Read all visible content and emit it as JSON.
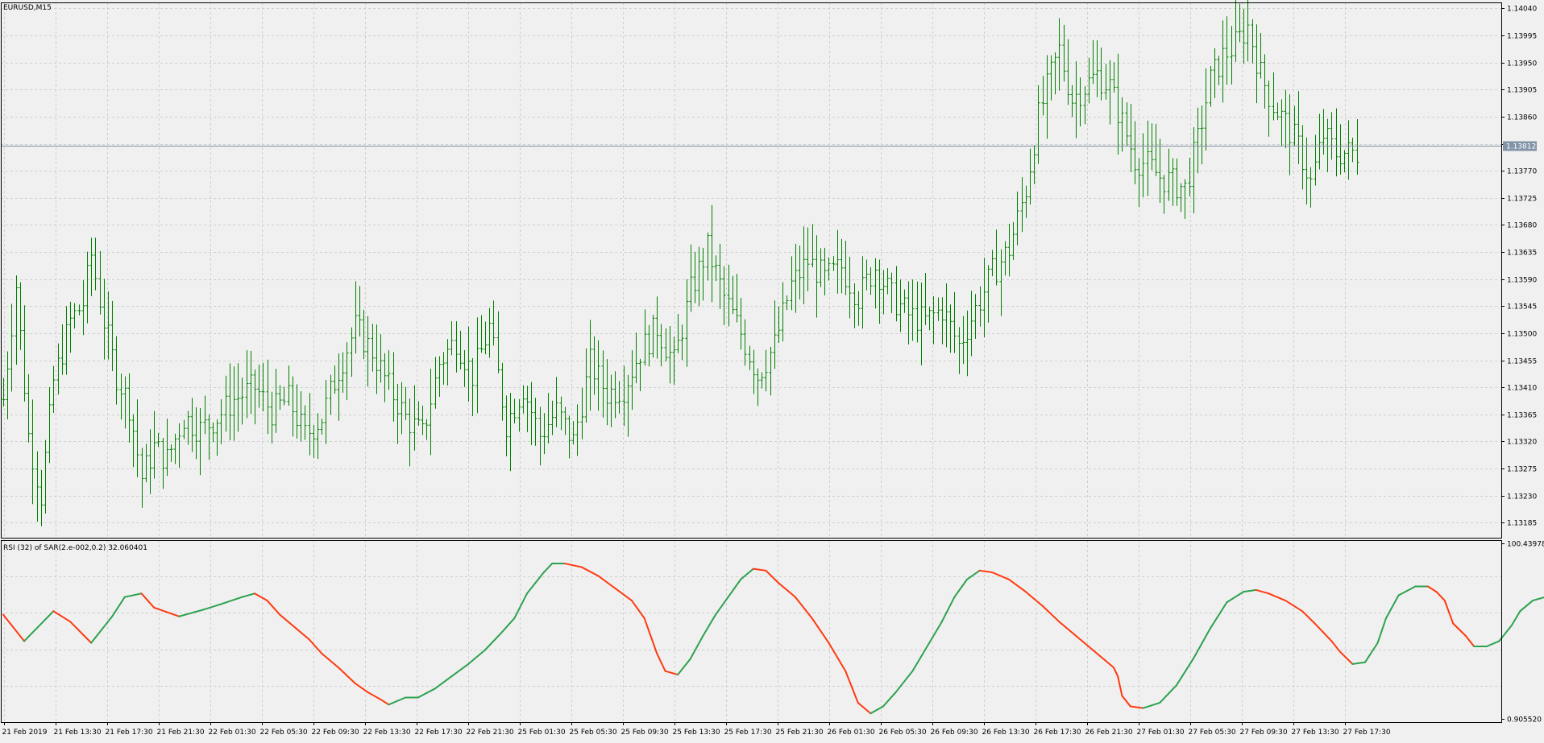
{
  "main_label": "EURUSD,M15",
  "indicator_label": "RSI (32) of SAR(2.e-002,0.2) 32.060401",
  "current_price_label": "1.13812",
  "colors": {
    "background": "#f0f0f0",
    "grid": "#cfcfcf",
    "axis_text": "#000000",
    "bar": "#008000",
    "rsi_up": "#2ca24f",
    "rsi_down": "#ff3a10",
    "price_line": "#7f8fa4",
    "price_label_bg": "#8494a8",
    "price_label_text": "#ffffff"
  },
  "chart_data": [
    {
      "type": "bar",
      "name": "EURUSD,M15",
      "yticks": [
        "1.14040",
        "1.13995",
        "1.13950",
        "1.13905",
        "1.13860",
        "1.13815",
        "1.13770",
        "1.13725",
        "1.13680",
        "1.13635",
        "1.13590",
        "1.13545",
        "1.13500",
        "1.13455",
        "1.13410",
        "1.13365",
        "1.13320",
        "1.13275",
        "1.13230",
        "1.13185"
      ],
      "ylim": [
        1.1316,
        1.1405
      ],
      "current_price": 1.13812,
      "x_tick_labels": [
        "21 Feb 2019",
        "21 Feb 13:30",
        "21 Feb 17:30",
        "21 Feb 21:30",
        "22 Feb 01:30",
        "22 Feb 05:30",
        "22 Feb 09:30",
        "22 Feb 13:30",
        "22 Feb 17:30",
        "22 Feb 21:30",
        "25 Feb 01:30",
        "25 Feb 05:30",
        "25 Feb 09:30",
        "25 Feb 13:30",
        "25 Feb 17:30",
        "25 Feb 21:30",
        "26 Feb 01:30",
        "26 Feb 05:30",
        "26 Feb 09:30",
        "26 Feb 13:30",
        "26 Feb 17:30",
        "26 Feb 21:30",
        "27 Feb 01:30",
        "27 Feb 05:30",
        "27 Feb 09:30",
        "27 Feb 13:30",
        "27 Feb 17:30"
      ],
      "bar_count": 324,
      "close_path": [
        [
          0,
          1.1339
        ],
        [
          3,
          1.1358
        ],
        [
          6,
          1.1333
        ],
        [
          9,
          1.1323
        ],
        [
          12,
          1.1342
        ],
        [
          16,
          1.1352
        ],
        [
          19,
          1.1355
        ],
        [
          21,
          1.1363
        ],
        [
          24,
          1.1352
        ],
        [
          27,
          1.1343
        ],
        [
          30,
          1.1338
        ],
        [
          33,
          1.1326
        ],
        [
          36,
          1.1331
        ],
        [
          39,
          1.1329
        ],
        [
          43,
          1.1336
        ],
        [
          47,
          1.1334
        ],
        [
          51,
          1.1336
        ],
        [
          55,
          1.1339
        ],
        [
          60,
          1.1341
        ],
        [
          64,
          1.1337
        ],
        [
          68,
          1.1339
        ],
        [
          72,
          1.1333
        ],
        [
          76,
          1.1336
        ],
        [
          80,
          1.1344
        ],
        [
          84,
          1.1351
        ],
        [
          88,
          1.1347
        ],
        [
          92,
          1.1341
        ],
        [
          96,
          1.1336
        ],
        [
          100,
          1.1333
        ],
        [
          104,
          1.1345
        ],
        [
          108,
          1.1349
        ],
        [
          112,
          1.1343
        ],
        [
          116,
          1.1351
        ],
        [
          120,
          1.1335
        ],
        [
          124,
          1.1341
        ],
        [
          128,
          1.1333
        ],
        [
          132,
          1.1337
        ],
        [
          136,
          1.1332
        ],
        [
          140,
          1.1345
        ],
        [
          144,
          1.134
        ],
        [
          148,
          1.1341
        ],
        [
          152,
          1.1347
        ],
        [
          156,
          1.1351
        ],
        [
          160,
          1.1345
        ],
        [
          164,
          1.1357
        ],
        [
          168,
          1.1364
        ],
        [
          172,
          1.1356
        ],
        [
          176,
          1.135
        ],
        [
          180,
          1.1343
        ],
        [
          184,
          1.1348
        ],
        [
          188,
          1.1358
        ],
        [
          192,
          1.1362
        ],
        [
          196,
          1.1359
        ],
        [
          200,
          1.1361
        ],
        [
          204,
          1.1356
        ],
        [
          208,
          1.1361
        ],
        [
          212,
          1.1356
        ],
        [
          216,
          1.1353
        ],
        [
          220,
          1.1352
        ],
        [
          224,
          1.1354
        ],
        [
          228,
          1.1348
        ],
        [
          232,
          1.1354
        ],
        [
          236,
          1.136
        ],
        [
          240,
          1.1364
        ],
        [
          244,
          1.1374
        ],
        [
          247,
          1.1386
        ],
        [
          250,
          1.1393
        ],
        [
          252,
          1.1397
        ],
        [
          255,
          1.1389
        ],
        [
          258,
          1.1391
        ],
        [
          261,
          1.1393
        ],
        [
          264,
          1.1391
        ],
        [
          267,
          1.1385
        ],
        [
          270,
          1.1379
        ],
        [
          273,
          1.1378
        ],
        [
          276,
          1.1376
        ],
        [
          279,
          1.1375
        ],
        [
          282,
          1.1374
        ],
        [
          285,
          1.1382
        ],
        [
          288,
          1.1392
        ],
        [
          291,
          1.1396
        ],
        [
          294,
          1.1398
        ],
        [
          297,
          1.1401
        ],
        [
          300,
          1.1393
        ],
        [
          303,
          1.1388
        ],
        [
          306,
          1.1385
        ],
        [
          309,
          1.1381
        ],
        [
          312,
          1.1375
        ],
        [
          315,
          1.1383
        ],
        [
          318,
          1.138
        ]
      ]
    },
    {
      "type": "line",
      "name": "RSI (32) of SAR(2.e-002,0.2)",
      "yticks": [
        "100.439788",
        "0.905520"
      ],
      "ylim": [
        0.90552,
        100.439788
      ],
      "rsi_points": [
        [
          0,
          60
        ],
        [
          5,
          45
        ],
        [
          12,
          62
        ],
        [
          16,
          56
        ],
        [
          21,
          44
        ],
        [
          26,
          59
        ],
        [
          29,
          70
        ],
        [
          33,
          72
        ],
        [
          36,
          64
        ],
        [
          42,
          59
        ],
        [
          48,
          63
        ],
        [
          52,
          66
        ],
        [
          57,
          70
        ],
        [
          60,
          72
        ],
        [
          63,
          68
        ],
        [
          66,
          60
        ],
        [
          70,
          52
        ],
        [
          73,
          46
        ],
        [
          76,
          38
        ],
        [
          80,
          30
        ],
        [
          84,
          21
        ],
        [
          87,
          16
        ],
        [
          90,
          12
        ],
        [
          92,
          9
        ],
        [
          96,
          13
        ],
        [
          99,
          13
        ],
        [
          103,
          18
        ],
        [
          107,
          25
        ],
        [
          111,
          32
        ],
        [
          115,
          40
        ],
        [
          119,
          50
        ],
        [
          122,
          58
        ],
        [
          125,
          72
        ],
        [
          127,
          78
        ],
        [
          129,
          84
        ],
        [
          131,
          89
        ],
        [
          134,
          89
        ],
        [
          138,
          87
        ],
        [
          142,
          82
        ],
        [
          146,
          75
        ],
        [
          150,
          68
        ],
        [
          153,
          58
        ],
        [
          156,
          38
        ],
        [
          158,
          28
        ],
        [
          161,
          26
        ],
        [
          164,
          35
        ],
        [
          167,
          48
        ],
        [
          170,
          60
        ],
        [
          173,
          70
        ],
        [
          176,
          80
        ],
        [
          179,
          86
        ],
        [
          182,
          85
        ],
        [
          185,
          78
        ],
        [
          189,
          70
        ],
        [
          193,
          58
        ],
        [
          197,
          44
        ],
        [
          201,
          28
        ],
        [
          204,
          10
        ],
        [
          207,
          4
        ],
        [
          210,
          8
        ],
        [
          213,
          16
        ],
        [
          217,
          28
        ],
        [
          220,
          40
        ],
        [
          224,
          56
        ],
        [
          227,
          70
        ],
        [
          230,
          80
        ],
        [
          233,
          85
        ],
        [
          236,
          84
        ],
        [
          240,
          80
        ],
        [
          244,
          73
        ],
        [
          248,
          65
        ],
        [
          252,
          56
        ],
        [
          256,
          48
        ],
        [
          260,
          40
        ],
        [
          263,
          34
        ],
        [
          265,
          30
        ],
        [
          266,
          25
        ],
        [
          267,
          14
        ],
        [
          269,
          8
        ],
        [
          272,
          7
        ],
        [
          276,
          10
        ],
        [
          280,
          20
        ],
        [
          284,
          35
        ],
        [
          288,
          52
        ],
        [
          292,
          67
        ],
        [
          296,
          73
        ],
        [
          299,
          74
        ],
        [
          302,
          72
        ],
        [
          306,
          68
        ],
        [
          310,
          62
        ],
        [
          313,
          55
        ],
        [
          315,
          50
        ],
        [
          317,
          45
        ],
        [
          319,
          39
        ],
        [
          322,
          32
        ],
        [
          325,
          33
        ],
        [
          328,
          44
        ],
        [
          330,
          58
        ],
        [
          333,
          71
        ],
        [
          337,
          76
        ],
        [
          340,
          76
        ],
        [
          342,
          73
        ],
        [
          344,
          68
        ],
        [
          346,
          55
        ],
        [
          349,
          48
        ],
        [
          351,
          42
        ],
        [
          354,
          42
        ],
        [
          357,
          45
        ],
        [
          360,
          54
        ],
        [
          362,
          62
        ],
        [
          365,
          68
        ],
        [
          368,
          70
        ],
        [
          371,
          69
        ],
        [
          374,
          66
        ],
        [
          378,
          59
        ],
        [
          382,
          50
        ],
        [
          386,
          43
        ],
        [
          389,
          35
        ],
        [
          392,
          25
        ],
        [
          395,
          21
        ],
        [
          397,
          16
        ],
        [
          399,
          13
        ],
        [
          403,
          11
        ],
        [
          406,
          15
        ],
        [
          408,
          22
        ],
        [
          411,
          35
        ],
        [
          414,
          47
        ],
        [
          418,
          55
        ],
        [
          421,
          58
        ],
        [
          424,
          60
        ],
        [
          427,
          60
        ],
        [
          428,
          55
        ],
        [
          429,
          50
        ]
      ]
    }
  ]
}
